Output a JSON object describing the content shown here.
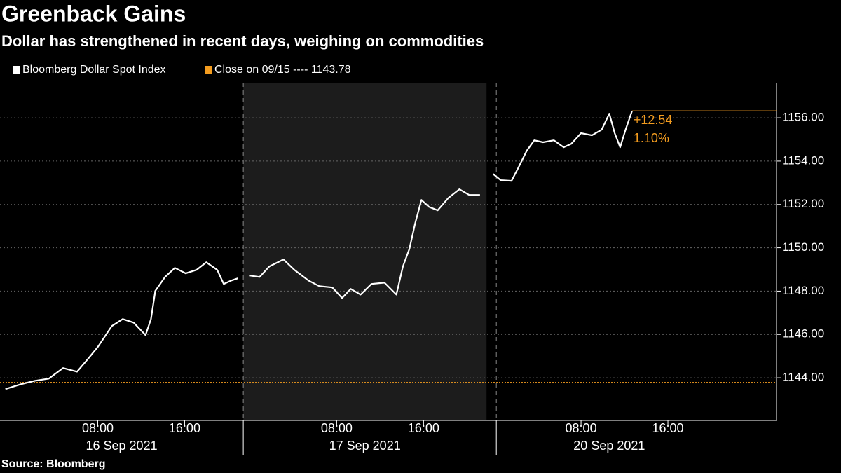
{
  "chart_data": {
    "type": "line",
    "title": "Greenback Gains",
    "subtitle": "Dollar has strengthened in recent days, weighing on commodities",
    "source": "Source: Bloomberg",
    "x": [
      -0.5,
      0.9,
      2.2,
      3.5,
      4.8,
      6.1,
      7.1,
      8.0,
      9.3,
      10.3,
      11.3,
      12.4,
      12.9,
      13.3,
      14.2,
      15.1,
      16.1,
      17.1,
      18.0,
      19.0,
      19.6,
      20.3,
      20.9,
      21.5,
      22.0,
      22.9,
      23.8,
      25.1,
      26.1,
      27.4,
      28.4,
      29.6,
      30.5,
      31.3,
      32.2,
      33.2,
      34.4,
      35.5,
      36.1,
      36.7,
      37.2,
      37.8,
      38.5,
      39.3,
      40.3,
      41.3,
      42.2,
      43.2,
      43.8,
      44.4,
      45.1,
      46.1,
      46.7,
      47.5,
      48.2,
      49.0,
      50.0,
      50.9,
      51.6,
      52.5,
      53.5,
      54.4,
      55.1,
      55.6,
      56.1,
      56.6,
      57.2
    ],
    "series": [
      {
        "name": "Bloomberg Dollar Spot Index",
        "color": "#ffffff",
        "values": [
          1143.48,
          1143.7,
          1143.86,
          1143.96,
          1144.45,
          1144.28,
          1144.87,
          1145.42,
          1146.39,
          1146.71,
          1146.55,
          1145.97,
          1146.71,
          1148.01,
          1148.65,
          1149.07,
          1148.82,
          1148.98,
          1149.33,
          1148.98,
          1148.33,
          1148.49,
          1148.59,
          null,
          1148.72,
          1148.65,
          1149.14,
          1149.46,
          1148.98,
          1148.49,
          1148.23,
          1148.17,
          1147.68,
          1148.1,
          1147.84,
          1148.33,
          1148.39,
          1147.84,
          1149.14,
          1149.95,
          1151.08,
          1152.21,
          1151.89,
          1151.73,
          1152.31,
          1152.7,
          1152.44,
          1152.44,
          null,
          1153.41,
          1153.12,
          1153.09,
          1153.67,
          1154.48,
          1154.96,
          1154.87,
          1154.96,
          1154.64,
          1154.8,
          1155.29,
          1155.19,
          1155.45,
          1156.19,
          1155.29,
          1154.64,
          1155.45,
          1156.32
        ]
      }
    ],
    "reference": {
      "legend": "Close on 09/15 ---- 1143.78",
      "value": 1143.78,
      "color": "#f39c1f"
    },
    "last_change": {
      "change": "+12.54",
      "percent": "1.10%",
      "color": "#f39c1f"
    },
    "xlim": [
      -1,
      70.5
    ],
    "xticks": [
      {
        "value": 8,
        "label": "08:00"
      },
      {
        "value": 16,
        "label": "16:00"
      },
      {
        "value": 30,
        "label": "08:00"
      },
      {
        "value": 38,
        "label": "16:00"
      },
      {
        "value": 52.5,
        "label": "08:00"
      },
      {
        "value": 60.5,
        "label": "16:00"
      }
    ],
    "sessions": [
      {
        "label": "16 Sep 2021",
        "start": -1,
        "end": 21.4,
        "shaded": false
      },
      {
        "label": "17 Sep 2021",
        "start": 21.4,
        "end": 43.8,
        "shaded": true
      },
      {
        "label": "20 Sep 2021",
        "start": 44.7,
        "end": 65.5,
        "shaded": false
      }
    ],
    "ylim": [
      1142.03,
      1157.62
    ],
    "yticks": [
      {
        "value": 1144,
        "label": "1144.00"
      },
      {
        "value": 1146,
        "label": "1146.00"
      },
      {
        "value": 1148,
        "label": "1148.00"
      },
      {
        "value": 1150,
        "label": "1150.00"
      },
      {
        "value": 1152,
        "label": "1152.00"
      },
      {
        "value": 1154,
        "label": "1154.00"
      },
      {
        "value": 1156,
        "label": "1156.00"
      }
    ],
    "grid": true
  }
}
